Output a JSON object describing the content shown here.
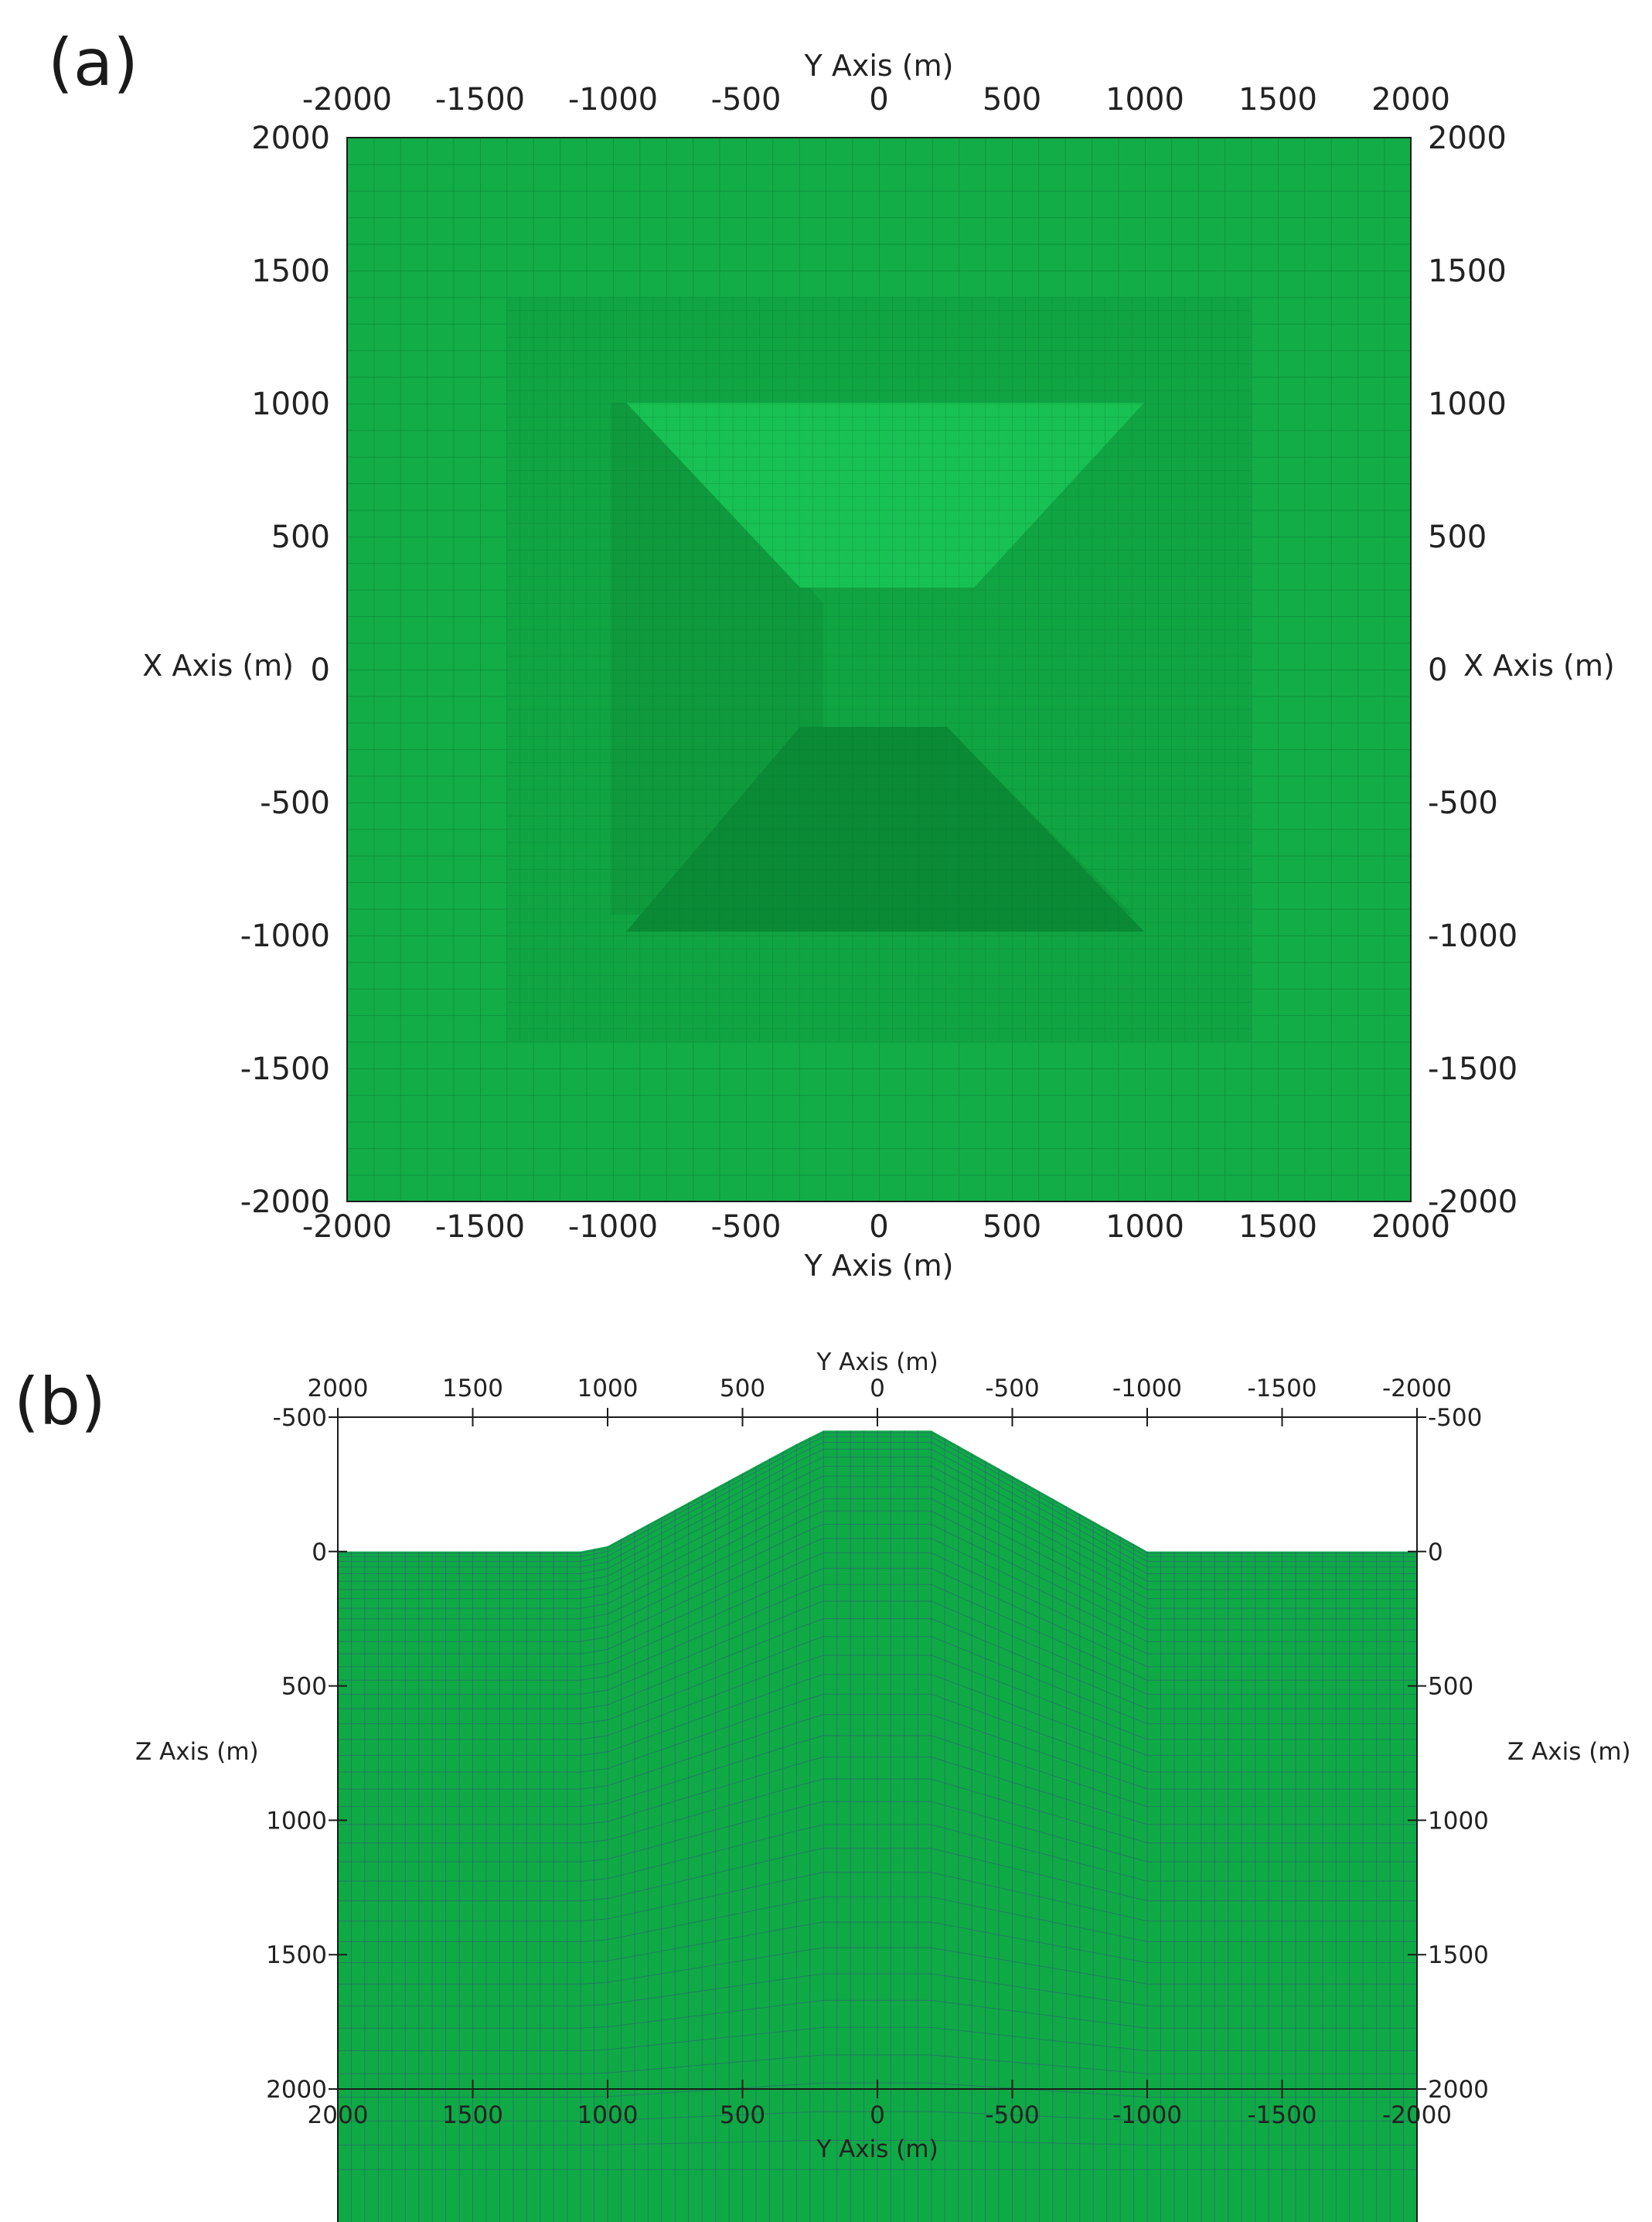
{
  "panels": [
    {
      "label": "(a)",
      "view": "plan",
      "y_axis_title": "Y Axis (m)",
      "x_axis_title": "X Axis (m)",
      "y_ticks": [
        -2000,
        -1500,
        -1000,
        -500,
        0,
        500,
        1000,
        1500,
        2000
      ],
      "x_ticks": [
        2000,
        1500,
        1000,
        500,
        0,
        -500,
        -1000,
        -1500,
        -2000
      ],
      "y_range": [
        -2000,
        2000
      ],
      "x_range": [
        -2000,
        2000
      ],
      "refined_region": {
        "y": [
          -1400,
          1400
        ],
        "x": [
          -1400,
          1400
        ]
      },
      "colors": {
        "base": "#12ad47",
        "refined": "#10a443",
        "light_trapezoid": "#18c153",
        "dark_region": "#0e9a3d",
        "darkest_trapezoid": "#0a8a35",
        "grid": "#0b6b2c"
      }
    },
    {
      "label": "(b)",
      "view": "section",
      "y_axis_title": "Y Axis (m)",
      "z_axis_title": "Z Axis (m)",
      "y_ticks": [
        2000,
        1500,
        1000,
        500,
        0,
        -500,
        -1000,
        -1500,
        -2000
      ],
      "z_ticks": [
        -500,
        0,
        500,
        1000,
        1500,
        2000
      ],
      "y_range": [
        2000,
        -2000
      ],
      "z_range": [
        -500,
        2000
      ],
      "topography": [
        {
          "y": 2000,
          "z": 0
        },
        {
          "y": 1100,
          "z": 0
        },
        {
          "y": 1000,
          "z": -20
        },
        {
          "y": 300,
          "z": -400
        },
        {
          "y": 200,
          "z": -450
        },
        {
          "y": -200,
          "z": -450
        },
        {
          "y": -1000,
          "z": 0
        },
        {
          "y": -2000,
          "z": 0
        }
      ],
      "colors": {
        "fill": "#0faa45",
        "grid": "#2f5d7a"
      }
    }
  ]
}
